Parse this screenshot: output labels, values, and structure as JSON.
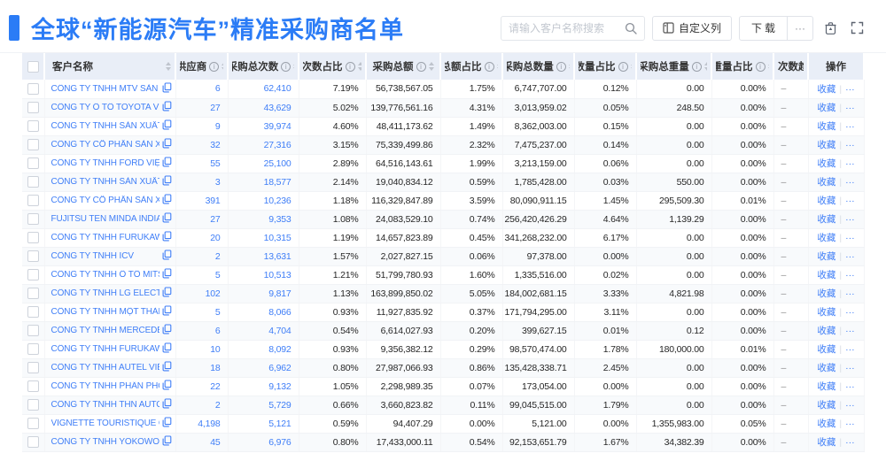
{
  "page": {
    "title": "全球“新能源汽车”精准采购商名单"
  },
  "toolbar": {
    "search_placeholder": "请输入客户名称搜索",
    "search_icon": "magnifier",
    "customize_columns_label": "自定义列",
    "download_label": "下载",
    "more_label": "···",
    "delete_icon": "trash",
    "fullscreen_icon": "expand"
  },
  "table": {
    "columns": [
      {
        "key": "checkbox",
        "label": "",
        "info": false,
        "sort": false
      },
      {
        "key": "name",
        "label": "客户名称",
        "info": false,
        "sort": true
      },
      {
        "key": "suppliers",
        "label": "供应商",
        "info": true,
        "sort": true
      },
      {
        "key": "purchases",
        "label": "采购总次数",
        "info": true,
        "sort": true
      },
      {
        "key": "purchases_share",
        "label": "次数占比",
        "info": true,
        "sort": true
      },
      {
        "key": "amount",
        "label": "采购总额",
        "info": true,
        "sort": true
      },
      {
        "key": "amount_share",
        "label": "总额占比",
        "info": true,
        "sort": true
      },
      {
        "key": "quantity",
        "label": "采购总数量",
        "info": true,
        "sort": true
      },
      {
        "key": "quantity_share",
        "label": "数量占比",
        "info": true,
        "sort": true
      },
      {
        "key": "weight",
        "label": "采购总重量",
        "info": true,
        "sort": true
      },
      {
        "key": "weight_share",
        "label": "重量占比",
        "info": true,
        "sort": true
      },
      {
        "key": "trend",
        "label": "次数趋势",
        "info": false,
        "sort": false
      },
      {
        "key": "actions",
        "label": "操作",
        "info": false,
        "sort": false
      }
    ],
    "actions": {
      "favorite": "收藏",
      "more": "···"
    },
    "rows": [
      {
        "name": "CÔNG TY TNHH MTV SẢN XUẤ...",
        "suppliers": "6",
        "purchases": "62,410",
        "purchases_share": "7.19%",
        "amount": "56,738,567.05",
        "amount_share": "1.75%",
        "quantity": "6,747,707.00",
        "quantity_share": "0.12%",
        "weight": "0.00",
        "weight_share": "0.00%",
        "trend": "–"
      },
      {
        "name": "CÔNG TY Ô TÔ TOYOTA VIỆT ...",
        "suppliers": "27",
        "purchases": "43,629",
        "purchases_share": "5.02%",
        "amount": "139,776,561.16",
        "amount_share": "4.31%",
        "quantity": "3,013,959.02",
        "quantity_share": "0.05%",
        "weight": "248.50",
        "weight_share": "0.00%",
        "trend": "–"
      },
      {
        "name": "CÔNG TY TNHH SẢN XUẤT VÀ ...",
        "suppliers": "9",
        "purchases": "39,974",
        "purchases_share": "4.60%",
        "amount": "48,411,173.62",
        "amount_share": "1.49%",
        "quantity": "8,362,003.00",
        "quantity_share": "0.15%",
        "weight": "0.00",
        "weight_share": "0.00%",
        "trend": "–"
      },
      {
        "name": "CÔNG TY CỔ PHẦN SẢN XUẤT...",
        "suppliers": "32",
        "purchases": "27,316",
        "purchases_share": "3.15%",
        "amount": "75,339,499.86",
        "amount_share": "2.32%",
        "quantity": "7,475,237.00",
        "quantity_share": "0.14%",
        "weight": "0.00",
        "weight_share": "0.00%",
        "trend": "–"
      },
      {
        "name": "CÔNG TY TNHH FORD VIỆT NAM",
        "suppliers": "55",
        "purchases": "25,100",
        "purchases_share": "2.89%",
        "amount": "64,516,143.61",
        "amount_share": "1.99%",
        "quantity": "3,213,159.00",
        "quantity_share": "0.06%",
        "weight": "0.00",
        "weight_share": "0.00%",
        "trend": "–"
      },
      {
        "name": "CÔNG TY TNHH SẢN XUẤT VÀ ...",
        "suppliers": "3",
        "purchases": "18,577",
        "purchases_share": "2.14%",
        "amount": "19,040,834.12",
        "amount_share": "0.59%",
        "quantity": "1,785,428.00",
        "quantity_share": "0.03%",
        "weight": "550.00",
        "weight_share": "0.00%",
        "trend": "–"
      },
      {
        "name": "CÔNG TY CỔ PHẦN SẢN XUẤT...",
        "suppliers": "391",
        "purchases": "10,236",
        "purchases_share": "1.18%",
        "amount": "116,329,847.89",
        "amount_share": "3.59%",
        "quantity": "80,090,911.15",
        "quantity_share": "1.45%",
        "weight": "295,509.30",
        "weight_share": "0.01%",
        "trend": "–"
      },
      {
        "name": "FUJITSU TEN MINDA INDIA PVT...",
        "suppliers": "27",
        "purchases": "9,353",
        "purchases_share": "1.08%",
        "amount": "24,083,529.10",
        "amount_share": "0.74%",
        "quantity": "256,420,426.29",
        "quantity_share": "4.64%",
        "weight": "1,139.29",
        "weight_share": "0.00%",
        "trend": "–"
      },
      {
        "name": "CÔNG TY TNHH FURUKAWA A...",
        "suppliers": "20",
        "purchases": "10,315",
        "purchases_share": "1.19%",
        "amount": "14,657,823.89",
        "amount_share": "0.45%",
        "quantity": "341,268,232.00",
        "quantity_share": "6.17%",
        "weight": "0.00",
        "weight_share": "0.00%",
        "trend": "–"
      },
      {
        "name": "CÔNG TY TNHH ICV",
        "suppliers": "2",
        "purchases": "13,631",
        "purchases_share": "1.57%",
        "amount": "2,027,827.15",
        "amount_share": "0.06%",
        "quantity": "97,378.00",
        "quantity_share": "0.00%",
        "weight": "0.00",
        "weight_share": "0.00%",
        "trend": "–"
      },
      {
        "name": "CÔNG TY TNHH Ô TÔ MITSUBI...",
        "suppliers": "5",
        "purchases": "10,513",
        "purchases_share": "1.21%",
        "amount": "51,799,780.93",
        "amount_share": "1.60%",
        "quantity": "1,335,516.00",
        "quantity_share": "0.02%",
        "weight": "0.00",
        "weight_share": "0.00%",
        "trend": "–"
      },
      {
        "name": "CÔNG TY TNHH LG ELECTRON...",
        "suppliers": "102",
        "purchases": "9,817",
        "purchases_share": "1.13%",
        "amount": "163,899,850.02",
        "amount_share": "5.05%",
        "quantity": "184,002,681.15",
        "quantity_share": "3.33%",
        "weight": "4,821.98",
        "weight_share": "0.00%",
        "trend": "–"
      },
      {
        "name": "CÔNG TY TNHH MỘT THÀNH V...",
        "suppliers": "5",
        "purchases": "8,066",
        "purchases_share": "0.93%",
        "amount": "11,927,835.92",
        "amount_share": "0.37%",
        "quantity": "171,794,295.00",
        "quantity_share": "3.11%",
        "weight": "0.00",
        "weight_share": "0.00%",
        "trend": "–"
      },
      {
        "name": "CÔNG TY TNHH MERCEDES–B...",
        "suppliers": "6",
        "purchases": "4,704",
        "purchases_share": "0.54%",
        "amount": "6,614,027.93",
        "amount_share": "0.20%",
        "quantity": "399,627.15",
        "quantity_share": "0.01%",
        "weight": "0.12",
        "weight_share": "0.00%",
        "trend": "–"
      },
      {
        "name": "CÔNG TY TNHH FURUKAWA A...",
        "suppliers": "10",
        "purchases": "8,092",
        "purchases_share": "0.93%",
        "amount": "9,356,382.12",
        "amount_share": "0.29%",
        "quantity": "98,570,474.00",
        "quantity_share": "1.78%",
        "weight": "180,000.00",
        "weight_share": "0.01%",
        "trend": "–"
      },
      {
        "name": "CÔNG TY TNHH AUTEL VIỆT N...",
        "suppliers": "18",
        "purchases": "6,962",
        "purchases_share": "0.80%",
        "amount": "27,987,066.93",
        "amount_share": "0.86%",
        "quantity": "135,428,338.71",
        "quantity_share": "2.45%",
        "weight": "0.00",
        "weight_share": "0.00%",
        "trend": "–"
      },
      {
        "name": "CÔNG TY TNHH PHÂN PHỐI T...",
        "suppliers": "22",
        "purchases": "9,132",
        "purchases_share": "1.05%",
        "amount": "2,298,989.35",
        "amount_share": "0.07%",
        "quantity": "173,054.00",
        "quantity_share": "0.00%",
        "weight": "0.00",
        "weight_share": "0.00%",
        "trend": "–"
      },
      {
        "name": "CÔNG TY TNHH THN AUTOPAR...",
        "suppliers": "2",
        "purchases": "5,729",
        "purchases_share": "0.66%",
        "amount": "3,660,823.82",
        "amount_share": "0.11%",
        "quantity": "99,045,515.00",
        "quantity_share": "1.79%",
        "weight": "0.00",
        "weight_share": "0.00%",
        "trend": "–"
      },
      {
        "name": "VIGNETTE TOURISTIQUE G UNI...",
        "suppliers": "4,198",
        "purchases": "5,121",
        "purchases_share": "0.59%",
        "amount": "94,407.29",
        "amount_share": "0.00%",
        "quantity": "5,121.00",
        "quantity_share": "0.00%",
        "weight": "1,355,983.00",
        "weight_share": "0.05%",
        "trend": "–"
      },
      {
        "name": "CÔNG TY TNHH YOKOWO VIỆT...",
        "suppliers": "45",
        "purchases": "6,976",
        "purchases_share": "0.80%",
        "amount": "17,433,000.11",
        "amount_share": "0.54%",
        "quantity": "92,153,651.79",
        "quantity_share": "1.67%",
        "weight": "34,382.39",
        "weight_share": "0.00%",
        "trend": "–"
      }
    ]
  },
  "colors": {
    "accent": "#2b7cf6",
    "link": "#3f7ef7",
    "header_bg": "#e9eef7"
  }
}
